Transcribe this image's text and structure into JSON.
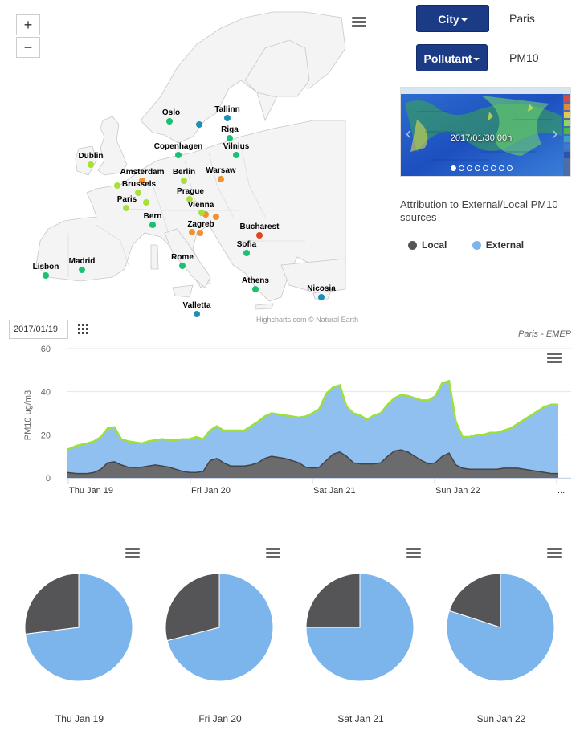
{
  "map": {
    "zoom_in": "+",
    "zoom_out": "−",
    "credit": "Highcharts.com © Natural Earth",
    "menu_icon": "hamburger-menu-icon",
    "cities": [
      {
        "name": "Oslo",
        "color": "#1cc071"
      },
      {
        "name": "Tallinn",
        "color": "#1a8fb8"
      },
      {
        "name": "Riga",
        "color": "#1cc071"
      },
      {
        "name": "Vilnius",
        "color": "#1cc071"
      },
      {
        "name": "Copenhagen",
        "color": "#1cc071"
      },
      {
        "name": "Dublin",
        "color": "#a8e03a"
      },
      {
        "name": "Berlin",
        "color": "#a8e03a"
      },
      {
        "name": "Warsaw",
        "color": "#f0912e"
      },
      {
        "name": "Amsterdam",
        "color": "#f0912e"
      },
      {
        "name": "Brussels",
        "color": "#a8e03a"
      },
      {
        "name": "Paris",
        "color": "#a8e03a"
      },
      {
        "name": "Prague",
        "color": "#a8e03a"
      },
      {
        "name": "Vienna",
        "color": "#f0912e"
      },
      {
        "name": "Bern",
        "color": "#1cc071"
      },
      {
        "name": "Zagreb",
        "color": "#f0912e"
      },
      {
        "name": "Bucharest",
        "color": "#e0461e"
      },
      {
        "name": "Sofia",
        "color": "#1cc071"
      },
      {
        "name": "Lisbon",
        "color": "#1cc071"
      },
      {
        "name": "Madrid",
        "color": "#1cc071"
      },
      {
        "name": "Rome",
        "color": "#1cc071"
      },
      {
        "name": "Athens",
        "color": "#1cc071"
      },
      {
        "name": "Nicosia",
        "color": "#1a8fb8"
      },
      {
        "name": "Valletta",
        "color": "#1a8fb8"
      }
    ]
  },
  "controls": {
    "city_label": "City",
    "city_value": "Paris",
    "pollutant_label": "Pollutant",
    "pollutant_value": "PM10",
    "caret_icon": "caret-down-icon"
  },
  "carousel": {
    "caption": "2017/01/30 00h",
    "prev_icon": "chevron-left-icon",
    "next_icon": "chevron-right-icon"
  },
  "attribution": {
    "title": "Attribution to External/Local PM10 sources",
    "legend": [
      {
        "name": "Local",
        "color": "#555558"
      },
      {
        "name": "External",
        "color": "#7cb5ec"
      }
    ]
  },
  "date_picker": {
    "value": "2017/01/19",
    "calendar_icon": "calendar-grid-icon"
  },
  "chart_data": [
    {
      "type": "area",
      "subtitle": "Paris - EMEP",
      "ylabel": "PM10 ug/m3",
      "ylim": [
        0,
        60
      ],
      "yticks": [
        0,
        20,
        40,
        60
      ],
      "xticks": [
        "Thu Jan 19",
        "Fri Jan 20",
        "Sat Jan 21",
        "Sun Jan 22",
        "..."
      ],
      "x_hours": [
        0,
        3,
        6,
        8,
        10,
        12,
        14,
        16,
        18,
        20,
        22,
        24,
        26,
        28,
        30,
        32,
        34,
        36,
        38,
        40,
        42,
        44,
        46,
        48,
        50,
        52,
        54,
        56,
        58,
        60,
        62,
        64,
        66,
        68,
        70,
        72,
        74,
        76,
        78,
        80,
        82,
        84,
        86,
        88,
        90,
        92,
        94,
        96,
        98,
        100,
        102,
        104,
        106,
        108,
        110,
        112,
        114,
        116,
        118,
        120,
        122,
        124,
        126,
        128,
        130,
        132,
        134,
        136,
        138,
        140,
        142,
        144
      ],
      "series": [
        {
          "name": "Local",
          "color": "#555558",
          "values": [
            2.5,
            2,
            2,
            2.5,
            4,
            7,
            7.5,
            6,
            5,
            4.8,
            5,
            5.5,
            6,
            5.5,
            5,
            4,
            3,
            2.5,
            2.5,
            3,
            8,
            9,
            7,
            5.5,
            5.5,
            5.5,
            6,
            7,
            9,
            10,
            9.5,
            9,
            8,
            7,
            5,
            4.5,
            5,
            8,
            11,
            12,
            10,
            7,
            6.5,
            6.5,
            6.5,
            7,
            10,
            12.5,
            13,
            12,
            10,
            8,
            6.5,
            7,
            10,
            11.5,
            6,
            4.5,
            4,
            4,
            4,
            4,
            4,
            4.5,
            4.5,
            4.5,
            4,
            3.5,
            3,
            2.5,
            2,
            2
          ]
        },
        {
          "name": "External",
          "color": "#7cb5ec",
          "values": [
            13,
            15,
            16,
            17,
            19,
            23,
            23.5,
            18,
            17,
            16.5,
            16,
            17,
            17.5,
            18,
            17.5,
            17.5,
            18,
            18,
            19,
            18,
            22,
            24,
            22,
            22,
            22,
            22,
            24,
            26,
            28.5,
            30,
            29.5,
            29,
            28.5,
            28,
            28.5,
            30,
            32,
            39,
            42,
            43,
            33,
            30,
            29,
            27,
            29,
            30,
            34,
            37,
            38.5,
            38,
            37,
            36,
            36,
            38,
            44,
            45,
            26,
            19,
            19,
            20,
            20,
            21,
            21,
            22,
            23,
            25,
            27,
            29,
            31,
            33,
            34,
            34
          ]
        }
      ]
    },
    {
      "type": "pie",
      "title": "Thu Jan 19",
      "series": [
        {
          "name": "Local",
          "value": 27,
          "color": "#555558"
        },
        {
          "name": "External",
          "value": 73,
          "color": "#7cb5ec"
        }
      ]
    },
    {
      "type": "pie",
      "title": "Fri Jan 20",
      "series": [
        {
          "name": "Local",
          "value": 29,
          "color": "#555558"
        },
        {
          "name": "External",
          "value": 71,
          "color": "#7cb5ec"
        }
      ]
    },
    {
      "type": "pie",
      "title": "Sat Jan 21",
      "series": [
        {
          "name": "Local",
          "value": 25,
          "color": "#555558"
        },
        {
          "name": "External",
          "value": 75,
          "color": "#7cb5ec"
        }
      ]
    },
    {
      "type": "pie",
      "title": "Sun Jan 22",
      "series": [
        {
          "name": "Local",
          "value": 20,
          "color": "#555558"
        },
        {
          "name": "External",
          "value": 80,
          "color": "#7cb5ec"
        }
      ]
    }
  ]
}
